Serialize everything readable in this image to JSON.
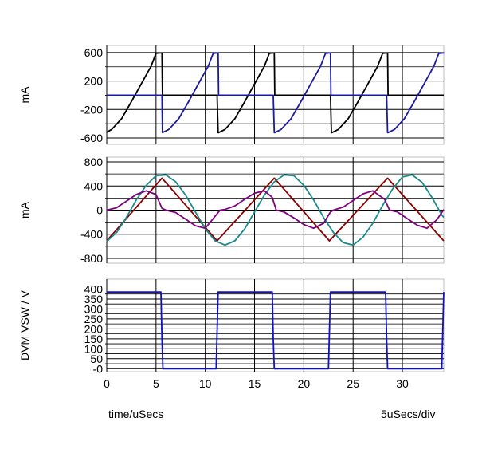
{
  "footer": {
    "xlabel": "time/uSecs",
    "scale": "5uSecs/div"
  },
  "chart_data": [
    {
      "type": "line",
      "ylabel": "mA",
      "xlim": [
        0,
        34.2
      ],
      "ylim": [
        -690,
        700
      ],
      "yticks": [
        600,
        200,
        -200,
        -600
      ],
      "grid": true,
      "series": [
        {
          "color": "#000000",
          "x": [
            0,
            0.5,
            1.5,
            2.5,
            3.5,
            4.5,
            5.0,
            5.4,
            5.6,
            5.65,
            10.9,
            11.2,
            11.3,
            11.35,
            12.0,
            13.0,
            14.0,
            15.0,
            16.0,
            16.5,
            16.9,
            17.0,
            17.05,
            22.6,
            22.7,
            22.8,
            22.85,
            23.5,
            24.5,
            25.5,
            26.5,
            27.5,
            28.0,
            28.4,
            28.5,
            28.55,
            34.2
          ],
          "y": [
            -520,
            -480,
            -330,
            -90,
            160,
            410,
            590,
            595,
            595,
            0,
            0,
            0,
            -525,
            -525,
            -480,
            -330,
            -90,
            160,
            410,
            590,
            595,
            595,
            0,
            0,
            0,
            -525,
            -525,
            -480,
            -330,
            -90,
            160,
            410,
            590,
            595,
            595,
            0,
            0
          ]
        },
        {
          "color": "#1a1aa0",
          "x": [
            0,
            5.6,
            5.65,
            6.3,
            7.3,
            8.3,
            9.3,
            10.3,
            10.8,
            11.2,
            11.3,
            11.35,
            16.9,
            17.0,
            17.05,
            17.7,
            18.7,
            19.7,
            20.7,
            21.7,
            22.2,
            22.6,
            22.7,
            22.75,
            28.4,
            28.5,
            28.55,
            29.2,
            30.2,
            31.2,
            32.2,
            33.2,
            33.7,
            34.2,
            34.25
          ],
          "y": [
            0,
            0,
            -525,
            -480,
            -330,
            -90,
            160,
            410,
            590,
            595,
            595,
            0,
            0,
            -525,
            -525,
            -480,
            -330,
            -90,
            160,
            410,
            590,
            595,
            595,
            0,
            0,
            -525,
            -525,
            -480,
            -330,
            -90,
            160,
            410,
            590,
            595,
            595
          ]
        }
      ]
    },
    {
      "type": "line",
      "ylabel": "mA",
      "xlim": [
        0,
        34.2
      ],
      "ylim": [
        -880,
        880
      ],
      "yticks": [
        800,
        400,
        0,
        -400,
        -800
      ],
      "grid": true,
      "series": [
        {
          "color": "#8b0000",
          "x": [
            0,
            5.6,
            11.2,
            17.0,
            22.6,
            28.5,
            34.2
          ],
          "y": [
            -510,
            530,
            -510,
            530,
            -510,
            530,
            -510
          ]
        },
        {
          "color": "#1a8a8a",
          "x": [
            0,
            1,
            2,
            3,
            4,
            5,
            6,
            7,
            8,
            9,
            10,
            11,
            12,
            13,
            14,
            15,
            16,
            17,
            18,
            19,
            20,
            21,
            22,
            23,
            24,
            25,
            26,
            27,
            28,
            29,
            30,
            31,
            32,
            33,
            34,
            34.2
          ],
          "y": [
            -520,
            -370,
            -120,
            170,
            410,
            570,
            585,
            470,
            250,
            -30,
            -310,
            -510,
            -580,
            -510,
            -310,
            -30,
            250,
            470,
            585,
            570,
            410,
            170,
            -120,
            -370,
            -540,
            -580,
            -450,
            -220,
            80,
            350,
            550,
            585,
            460,
            210,
            -80,
            -120
          ]
        },
        {
          "color": "#800080",
          "x": [
            0,
            1,
            2,
            3,
            4,
            5,
            5.6,
            6,
            7,
            8,
            9,
            10,
            11,
            11.5,
            12,
            13,
            14,
            15,
            16,
            16.8,
            17.2,
            18,
            19,
            20,
            21,
            22,
            22.7,
            23,
            24,
            25,
            26,
            27,
            28.2,
            28.7,
            29.5,
            30.5,
            31.5,
            32.5,
            33.5,
            34.2
          ],
          "y": [
            0,
            40,
            150,
            260,
            320,
            260,
            30,
            0,
            -40,
            -150,
            -260,
            -300,
            -100,
            0,
            10,
            70,
            180,
            280,
            320,
            210,
            0,
            -30,
            -130,
            -240,
            -300,
            -220,
            -30,
            0,
            50,
            160,
            270,
            320,
            180,
            0,
            -30,
            -140,
            -250,
            -300,
            -160,
            10
          ]
        }
      ]
    },
    {
      "type": "line",
      "ylabel": "DVM VSW / V",
      "xlim": [
        0,
        34.2
      ],
      "ylim": [
        -15,
        450
      ],
      "yticks": [
        400,
        350,
        300,
        250,
        200,
        150,
        100,
        50,
        0
      ],
      "ytick_labels": [
        "400",
        "350",
        "300",
        "250",
        "200",
        "150",
        "100",
        "50",
        "-0"
      ],
      "xticks": [
        0,
        5,
        10,
        15,
        20,
        25,
        30
      ],
      "grid": true,
      "series": [
        {
          "color": "#1010c8",
          "x": [
            0,
            5.5,
            5.6,
            5.7,
            11.1,
            11.3,
            16.8,
            16.9,
            17.0,
            22.5,
            22.7,
            28.3,
            28.4,
            28.5,
            34.0,
            34.2
          ],
          "y": [
            385,
            385,
            150,
            0,
            0,
            385,
            385,
            150,
            0,
            0,
            385,
            385,
            150,
            0,
            0,
            385
          ]
        }
      ]
    }
  ]
}
